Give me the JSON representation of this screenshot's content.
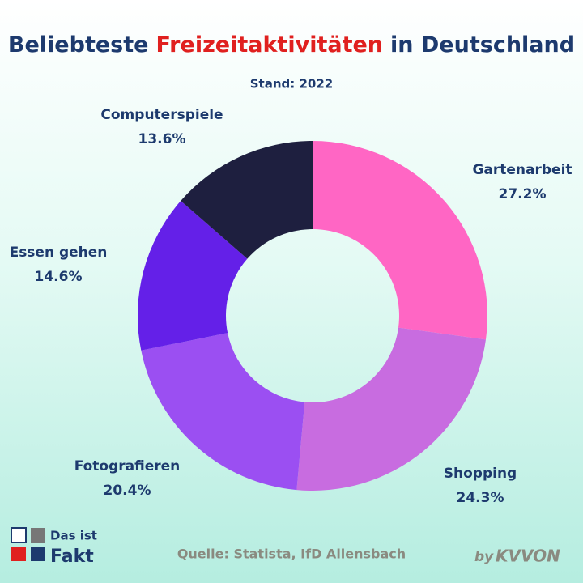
{
  "chart_data": {
    "type": "donut",
    "title_parts": [
      "Beliebteste",
      "Freizeitaktivitäten",
      "in Deutschland"
    ],
    "subtitle": "Stand: 2022",
    "categories": [
      "Gartenarbeit",
      "Shopping",
      "Fotografieren",
      "Essen gehen",
      "Computerspiele"
    ],
    "values": [
      27.2,
      24.3,
      20.4,
      14.6,
      13.6
    ],
    "value_labels": [
      "27.2%",
      "24.3%",
      "20.4%",
      "14.6%",
      "13.6%"
    ],
    "colors": [
      "#ff66c4",
      "#c86ce0",
      "#9b4ff2",
      "#6420e8",
      "#1e1f3f"
    ],
    "source": "Quelle: Statista, IfD Allensbach"
  },
  "branding": {
    "logo": [
      "Das ist",
      "Fakt"
    ],
    "credit_by": "by",
    "credit_name": "KVVON"
  }
}
